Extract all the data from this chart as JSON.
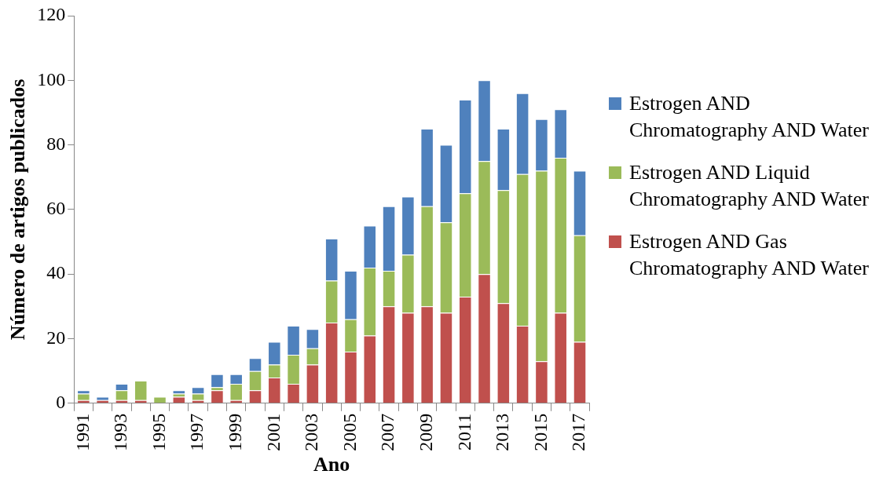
{
  "chart_data": {
    "type": "bar",
    "stacked": true,
    "xlabel": "Ano",
    "ylabel": "Número de artigos publicados",
    "categories": [
      "1991",
      null,
      "1993",
      null,
      "1995",
      null,
      "1997",
      null,
      "1999",
      null,
      "2001",
      null,
      "2003",
      null,
      "2005",
      null,
      "2007",
      null,
      "2009",
      null,
      "2011",
      null,
      "2013",
      null,
      "2015",
      null,
      "2017"
    ],
    "series": [
      {
        "name": "Estrogen AND Gas Chromatography AND Water",
        "color": "#c0504d",
        "values": [
          1,
          1,
          1,
          1,
          0,
          2,
          1,
          4,
          1,
          4,
          8,
          6,
          12,
          25,
          16,
          21,
          30,
          28,
          30,
          28,
          33,
          40,
          31,
          24,
          13,
          28,
          19
        ]
      },
      {
        "name": "Estrogen AND Liquid Chromatography AND Water",
        "color": "#9bbb59",
        "values": [
          2,
          0,
          3,
          6,
          2,
          1,
          2,
          1,
          5,
          6,
          4,
          9,
          5,
          13,
          10,
          21,
          11,
          18,
          31,
          28,
          32,
          35,
          35,
          47,
          59,
          48,
          33
        ]
      },
      {
        "name": "Estrogen AND Chromatography AND Water",
        "color": "#4f81bd",
        "values": [
          1,
          1,
          2,
          0,
          0,
          1,
          2,
          4,
          3,
          4,
          7,
          9,
          6,
          13,
          15,
          13,
          20,
          18,
          24,
          24,
          29,
          25,
          19,
          25,
          16,
          15,
          20
        ]
      }
    ],
    "ylim": [
      0,
      120
    ],
    "yticks": [
      0,
      20,
      40,
      60,
      80,
      100,
      120
    ],
    "grid": false,
    "legend": "right"
  }
}
